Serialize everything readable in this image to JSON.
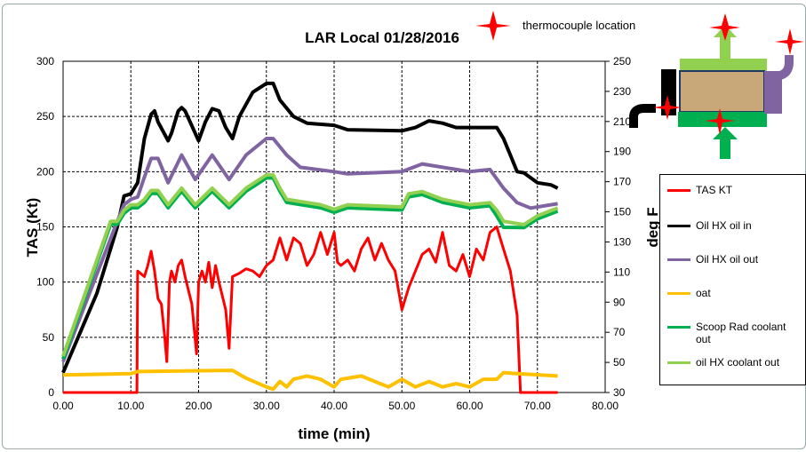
{
  "chart_data": {
    "type": "line",
    "title": "LAR Local 01/28/2016",
    "xlabel": "time (min)",
    "ylabel": "TAS (Kt)",
    "y2label": "deg F",
    "xlim": [
      0,
      80
    ],
    "ylim": [
      0,
      300
    ],
    "y2lim": [
      30,
      250
    ],
    "xticks": [
      "0.00",
      "10.00",
      "20.00",
      "30.00",
      "40.00",
      "50.00",
      "60.00",
      "70.00",
      "80.00"
    ],
    "yticks": [
      "0",
      "50",
      "100",
      "150",
      "200",
      "250",
      "300"
    ],
    "y2ticks": [
      "30",
      "50",
      "70",
      "90",
      "110",
      "130",
      "150",
      "170",
      "190",
      "210",
      "230",
      "250"
    ],
    "grid": true,
    "legend_position": "right",
    "series": [
      {
        "name": "TAS KT",
        "axis": "left",
        "color": "#ff0000",
        "x": [
          0,
          10.9,
          11,
          12,
          12.5,
          13,
          13.5,
          14,
          14.5,
          15,
          15.3,
          15.7,
          16,
          16.5,
          17,
          17.5,
          18,
          19,
          19.7,
          20,
          20.5,
          21,
          21.5,
          22,
          22.5,
          23,
          24,
          24.5,
          25,
          26,
          27,
          28,
          29,
          30,
          31,
          32,
          33,
          34,
          35,
          36,
          37,
          38,
          39,
          40,
          40.5,
          41,
          42,
          43,
          44,
          45,
          46,
          47,
          48,
          49,
          50,
          51,
          52,
          53,
          54,
          55,
          56,
          57,
          58,
          59,
          60,
          61,
          62,
          63,
          64,
          65,
          66,
          67,
          67.5,
          73
        ],
        "y": [
          0,
          0,
          110,
          105,
          115,
          128,
          110,
          85,
          80,
          50,
          28,
          100,
          110,
          100,
          115,
          120,
          105,
          80,
          35,
          100,
          110,
          100,
          118,
          95,
          115,
          100,
          75,
          40,
          105,
          108,
          112,
          110,
          105,
          115,
          120,
          140,
          120,
          140,
          135,
          115,
          125,
          145,
          125,
          145,
          118,
          115,
          120,
          110,
          130,
          140,
          120,
          135,
          120,
          110,
          75,
          95,
          110,
          125,
          130,
          118,
          145,
          115,
          110,
          125,
          105,
          130,
          120,
          145,
          150,
          130,
          110,
          70,
          0,
          0
        ]
      },
      {
        "name": "Oil HX oil in",
        "axis": "right",
        "color": "#000000",
        "x": [
          0,
          5,
          8,
          9,
          10,
          11,
          12,
          13,
          13.5,
          14,
          15.5,
          16,
          17,
          17.5,
          18,
          20,
          21,
          22,
          23,
          24,
          25,
          26,
          28,
          30,
          31,
          32,
          34,
          36,
          40,
          42,
          50,
          52,
          54,
          56,
          58,
          64,
          65,
          66,
          67,
          68,
          70,
          72,
          73
        ],
        "y": [
          43.2,
          96,
          140,
          160.5,
          162,
          169.3,
          198.7,
          214.8,
          217,
          209.7,
          197.2,
          202.3,
          217,
          219.2,
          217,
          197.2,
          209.7,
          218.5,
          217,
          206,
          198.7,
          213.3,
          229.5,
          235.3,
          235.3,
          224.3,
          213.3,
          208.9,
          207.5,
          204.5,
          203.8,
          206,
          210.4,
          208.9,
          206,
          206,
          198.7,
          187.7,
          176.7,
          175.9,
          169.3,
          167.9,
          165.7
        ]
      },
      {
        "name": "Oil HX oil out",
        "axis": "right",
        "color": "#8064a2",
        "x": [
          0,
          8,
          9,
          10,
          11,
          12,
          13,
          14,
          15.5,
          17.5,
          19.5,
          22,
          24.5,
          27,
          30,
          31,
          33,
          35,
          40,
          42,
          50,
          53,
          60,
          63,
          65,
          67,
          69,
          73
        ],
        "y": [
          50.5,
          143.7,
          154.7,
          158.3,
          159.8,
          173,
          185.5,
          185.5,
          169.3,
          187.7,
          171.5,
          187.7,
          171.5,
          187.7,
          198.7,
          198.7,
          187.7,
          179.6,
          176.7,
          175.2,
          176.7,
          181.8,
          176.7,
          178.1,
          165.7,
          156.1,
          152.5,
          155.4
        ]
      },
      {
        "name": "oat",
        "axis": "right",
        "color": "#ffc000",
        "x": [
          0,
          10,
          11,
          25,
          27,
          30,
          31,
          32,
          33,
          34,
          36,
          38,
          40,
          41,
          44,
          46,
          48,
          50,
          52,
          54,
          56,
          58,
          60,
          62,
          64,
          65,
          67,
          73
        ],
        "y": [
          41.7,
          42.5,
          43.9,
          44.7,
          39.5,
          33.7,
          32.2,
          37.3,
          33.7,
          38.8,
          41,
          38.8,
          33.7,
          38.8,
          41,
          37.3,
          33.7,
          38.8,
          33.7,
          37.3,
          33.7,
          35.9,
          33.7,
          38.8,
          38.8,
          43.2,
          42.5,
          41
        ]
      },
      {
        "name": "Scoop Rad coolant out",
        "axis": "right",
        "color": "#00b050",
        "x": [
          0,
          7,
          8,
          9,
          10,
          11,
          12,
          13,
          14,
          15.5,
          17.5,
          19.5,
          22,
          24.5,
          27,
          30,
          31,
          32,
          33,
          38,
          40,
          42,
          50,
          51,
          53,
          56,
          60,
          63,
          64,
          65,
          68,
          70,
          73
        ],
        "y": [
          52.2,
          141.7,
          141.7,
          149,
          152.7,
          152.7,
          156.3,
          162.2,
          162.2,
          152.7,
          163.7,
          152.7,
          163.7,
          152.7,
          163.7,
          172.5,
          172.5,
          163.7,
          156.3,
          152.7,
          149.7,
          152.7,
          151.2,
          160,
          161.5,
          156.3,
          152.7,
          154.1,
          147.3,
          139.7,
          139.5,
          145.3,
          150.5
        ]
      },
      {
        "name": "oil HX coolant out",
        "axis": "right",
        "color": "#92d050",
        "x": [
          0,
          7,
          8,
          9,
          10,
          11,
          12,
          13,
          14,
          15.5,
          17.5,
          19.5,
          22,
          24.5,
          27,
          30,
          31,
          32,
          33,
          38,
          40,
          42,
          50,
          51,
          53,
          56,
          60,
          63,
          64,
          65,
          68,
          70,
          73
        ],
        "y": [
          54.2,
          143.7,
          143.7,
          151,
          154.7,
          154.7,
          158.3,
          164.2,
          164.2,
          154.7,
          165.7,
          154.7,
          165.7,
          154.7,
          165.7,
          174.5,
          174.5,
          165.7,
          158.3,
          154.7,
          151.7,
          154.7,
          153.2,
          162,
          163.5,
          158.3,
          154.7,
          156.1,
          151,
          143.7,
          141.5,
          147.3,
          152.5
        ]
      }
    ],
    "annotation": "thermocouple location"
  },
  "colors": {
    "thermocouple": "#ff0000"
  }
}
